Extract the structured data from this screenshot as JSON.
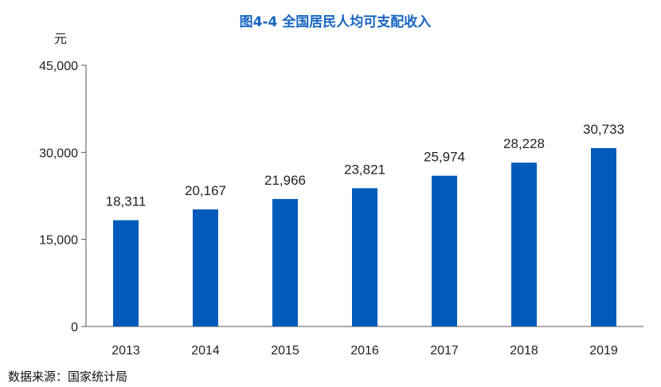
{
  "chart_data": {
    "type": "bar",
    "title": "图4-4 全国居民人均可支配收入",
    "ylabel": "元",
    "categories": [
      "2013",
      "2014",
      "2015",
      "2016",
      "2017",
      "2018",
      "2019"
    ],
    "values": [
      18311,
      20167,
      21966,
      23821,
      25974,
      28228,
      30733
    ],
    "value_labels": [
      "18,311",
      "20,167",
      "21,966",
      "23,821",
      "25,974",
      "28,228",
      "30,733"
    ],
    "ylim": [
      0,
      45000
    ],
    "yticks": [
      0,
      15000,
      30000,
      45000
    ],
    "ytick_labels": [
      "0",
      "15,000",
      "30,000",
      "45,000"
    ],
    "grid": false,
    "bar_color": "#005bbb"
  },
  "source": "数据来源：国家统计局"
}
